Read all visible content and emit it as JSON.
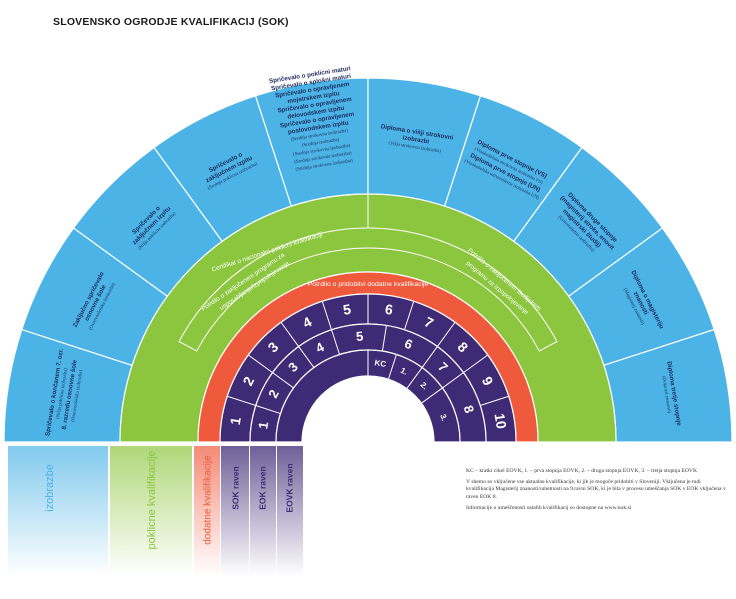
{
  "title": "SLOVENSKO OGRODJE KVALIFIKACIJ (SOK)",
  "colors": {
    "outer_ring": "#4bb3e6",
    "middle_ring": "#8cc63f",
    "red_ring": "#ef5a3c",
    "purple_rings": "#3f2a76",
    "ring_border": "#ffffff"
  },
  "outer_segments": [
    {
      "lines": [
        "Spričevalo o končanem 7. ozr.",
        "8. razredu osnovne šole"
      ],
      "sub": [
        "(Nižja poklicna izobrazba)",
        "(Osnovnošolska izobrazba)"
      ]
    },
    {
      "lines": [
        "Zaključno spričevalo",
        "osnovne šole"
      ],
      "sub": [
        "(Osnovnošolska izobrazba)"
      ]
    },
    {
      "lines": [
        "Spričevalo o",
        "zaključnem izpitu"
      ],
      "sub": [
        "(Nižja poklicna izobrazba)"
      ]
    },
    {
      "lines": [
        "Spričevalo o",
        "zaključnem izpitu"
      ],
      "sub": [
        "(Srednja poklicna izobrazba)"
      ]
    },
    {
      "lines": [
        "Spričevalo o poklicni maturi",
        "Spričevalo o splošni maturi",
        "Spričevalo o opravljenem",
        "mojstrskem izpitu",
        "Spričevalo o opravljenem",
        "delovodskem izpitu",
        "Spričevalo o opravljenem",
        "poslovodskem izpitu"
      ],
      "sub": [
        "(Srednja strokovna izobrazba)",
        "(Srednja izobrazba)",
        "(Srednja strokovna izobrazba)",
        "(Srednja strokovna izobrazba)",
        "(Srednja strokovna izobrazba)"
      ]
    },
    {
      "lines": [
        "Diploma o višji strokovni",
        "izobrazbi"
      ],
      "sub": [
        "(Višja strokovna izobrazba)"
      ]
    },
    {
      "lines": [
        "Diploma prve stopnje (VS)",
        "Diploma prve stopnje (UN)"
      ],
      "sub": [
        "(Visokošolska strokovna izobrazba VS)",
        "(Visokošolska univerzitetna izobrazba UN)"
      ]
    },
    {
      "lines": [
        "Diploma druge stopnje",
        "(magisterij stroke, enovit",
        "magistrski študij)"
      ],
      "sub": [
        "(Univerzitetna izobrazba)"
      ]
    },
    {
      "lines": [
        "Diploma o magisteriju",
        "znanosti"
      ],
      "sub": [
        "(Magisterij znanosti)"
      ]
    },
    {
      "lines": [
        "Diploma tretje stopnje"
      ],
      "sub": [
        "(Doktorat znanosti)"
      ]
    }
  ],
  "middle_labels": {
    "center": "Certifikat o nacionalni poklicni kvalifikaciji",
    "left": "Potrdilo o zaključenem programu za usposabljanje/izpopolnjevanje",
    "right": "Potrdilo o zaključenem študijskem programu za izpopolnjevanje"
  },
  "red_label": "Potrdilo o pridobitvi      dodatne kvalifikacije",
  "sok_levels": [
    "1",
    "2",
    "3",
    "4",
    "5",
    "6",
    "7",
    "8",
    "9",
    "10"
  ],
  "eok_levels": [
    "1",
    "2",
    "3",
    "4",
    "5",
    "6",
    "7",
    "8"
  ],
  "eovk_levels": [
    "KC",
    "1.",
    "2.",
    "3."
  ],
  "legend": {
    "izobrazbe": "izobrazbe",
    "poklicne": "poklicne kvalifikacije",
    "dodatne": "dodatne kvalifikacije",
    "sok": "SOK raven",
    "eok": "EOK raven",
    "eovk": "EOVK raven"
  },
  "notes": [
    "KC – kratki cikel EOVK, 1. – prva stopnja EOVK, 2. – druga stopnja EOVK, 3. – tretja stopnja EOVK",
    "V shemo so vključene vse aktualne kvalifikacije, ki jih je mogoče pridobiti v Sloveniji. Vključena je tudi kvalifikacija Magisterij znanosti/umetnosti na 9.ravni SOK, ki je bila v procesu umeščanja SOK v EOK vključena v raven EOK 8.",
    "Informacije o umeščenosti ostalih kvalifikacij so dostopne na www.nok.si"
  ]
}
